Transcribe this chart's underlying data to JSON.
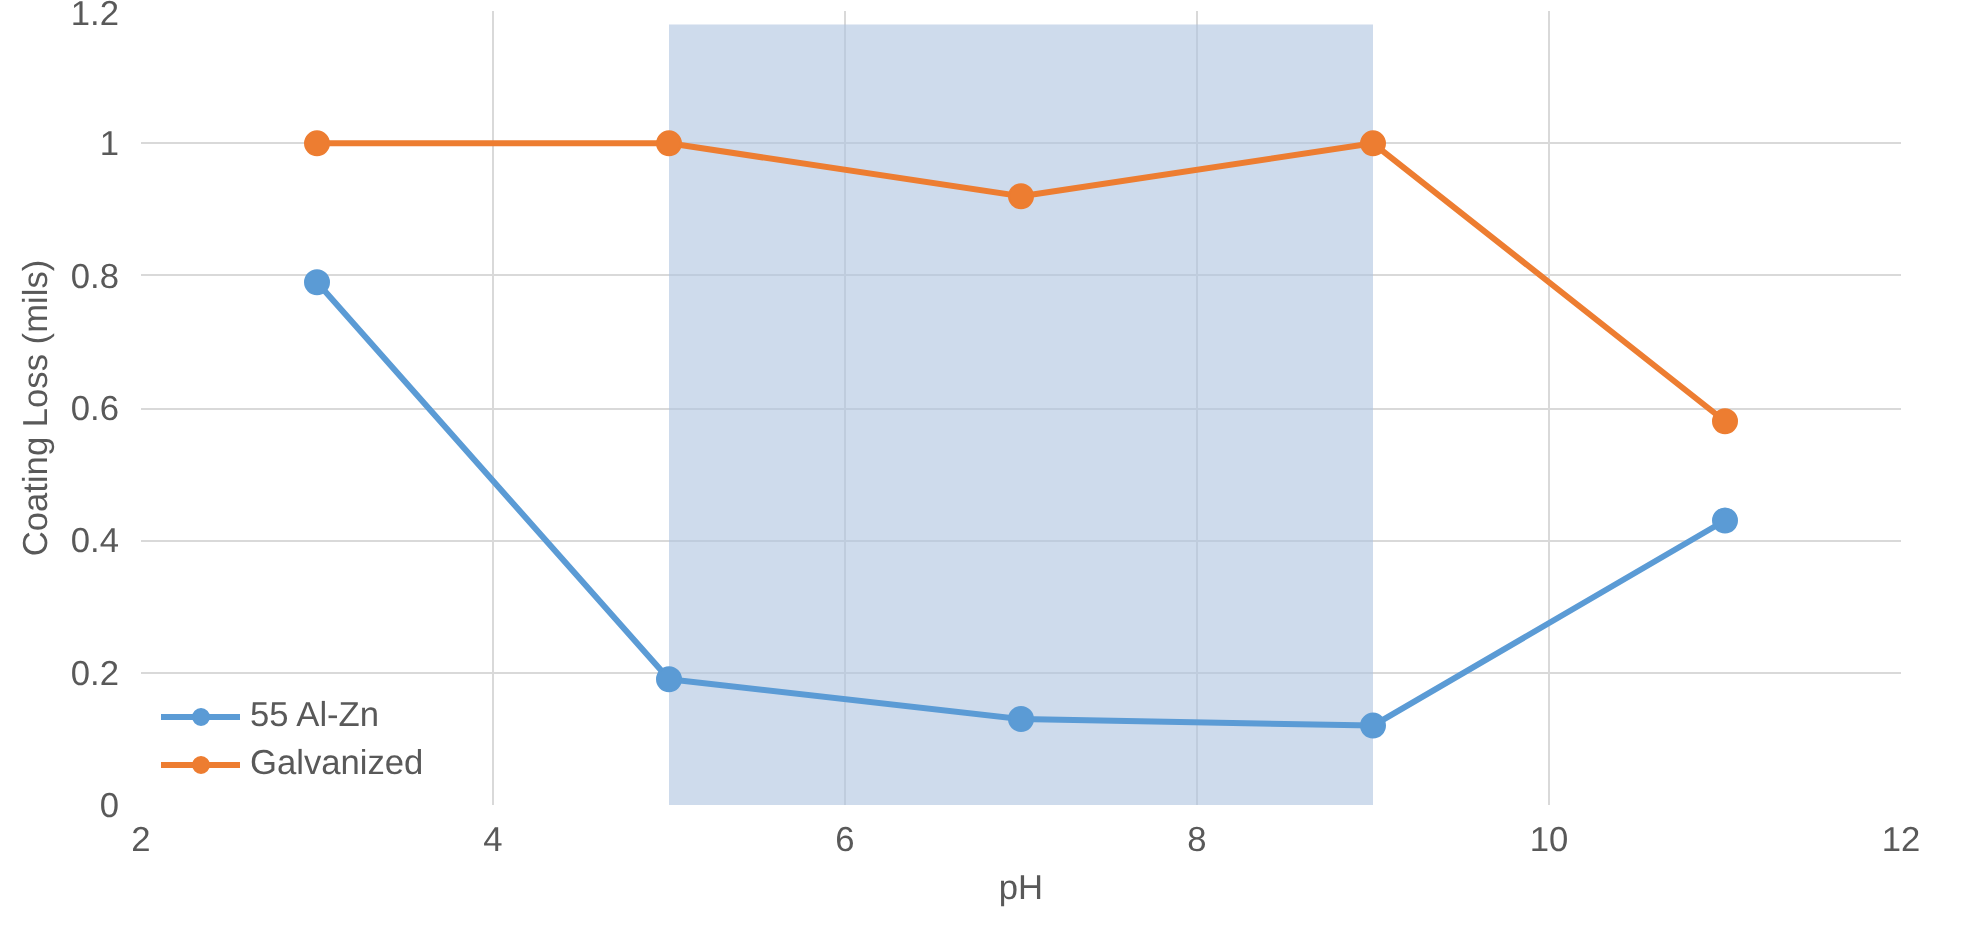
{
  "chart_data": {
    "type": "line",
    "xlabel": "pH",
    "ylabel": "Coating Loss (mils)",
    "x": [
      3,
      5,
      7,
      9,
      11
    ],
    "series": [
      {
        "name": "55 Al-Zn",
        "color": "#5b9bd5",
        "values": [
          0.79,
          0.19,
          0.13,
          0.12,
          0.43
        ]
      },
      {
        "name": "Galvanized",
        "color": "#ed7d31",
        "values": [
          1,
          1,
          0.92,
          1,
          0.58
        ]
      }
    ],
    "xlim": [
      2,
      12
    ],
    "xticks": [
      2,
      4,
      6,
      8,
      10,
      12
    ],
    "ylim": [
      0,
      1.2
    ],
    "yticks": [
      0,
      0.2,
      0.4,
      0.6,
      0.8,
      1,
      1.2
    ],
    "bands": [
      {
        "axis": "x",
        "from": 5,
        "to": 9,
        "color": "#adc3e0"
      }
    ],
    "grid": true,
    "legend": "bottom left",
    "marker": "circle",
    "line_style": "solid"
  }
}
